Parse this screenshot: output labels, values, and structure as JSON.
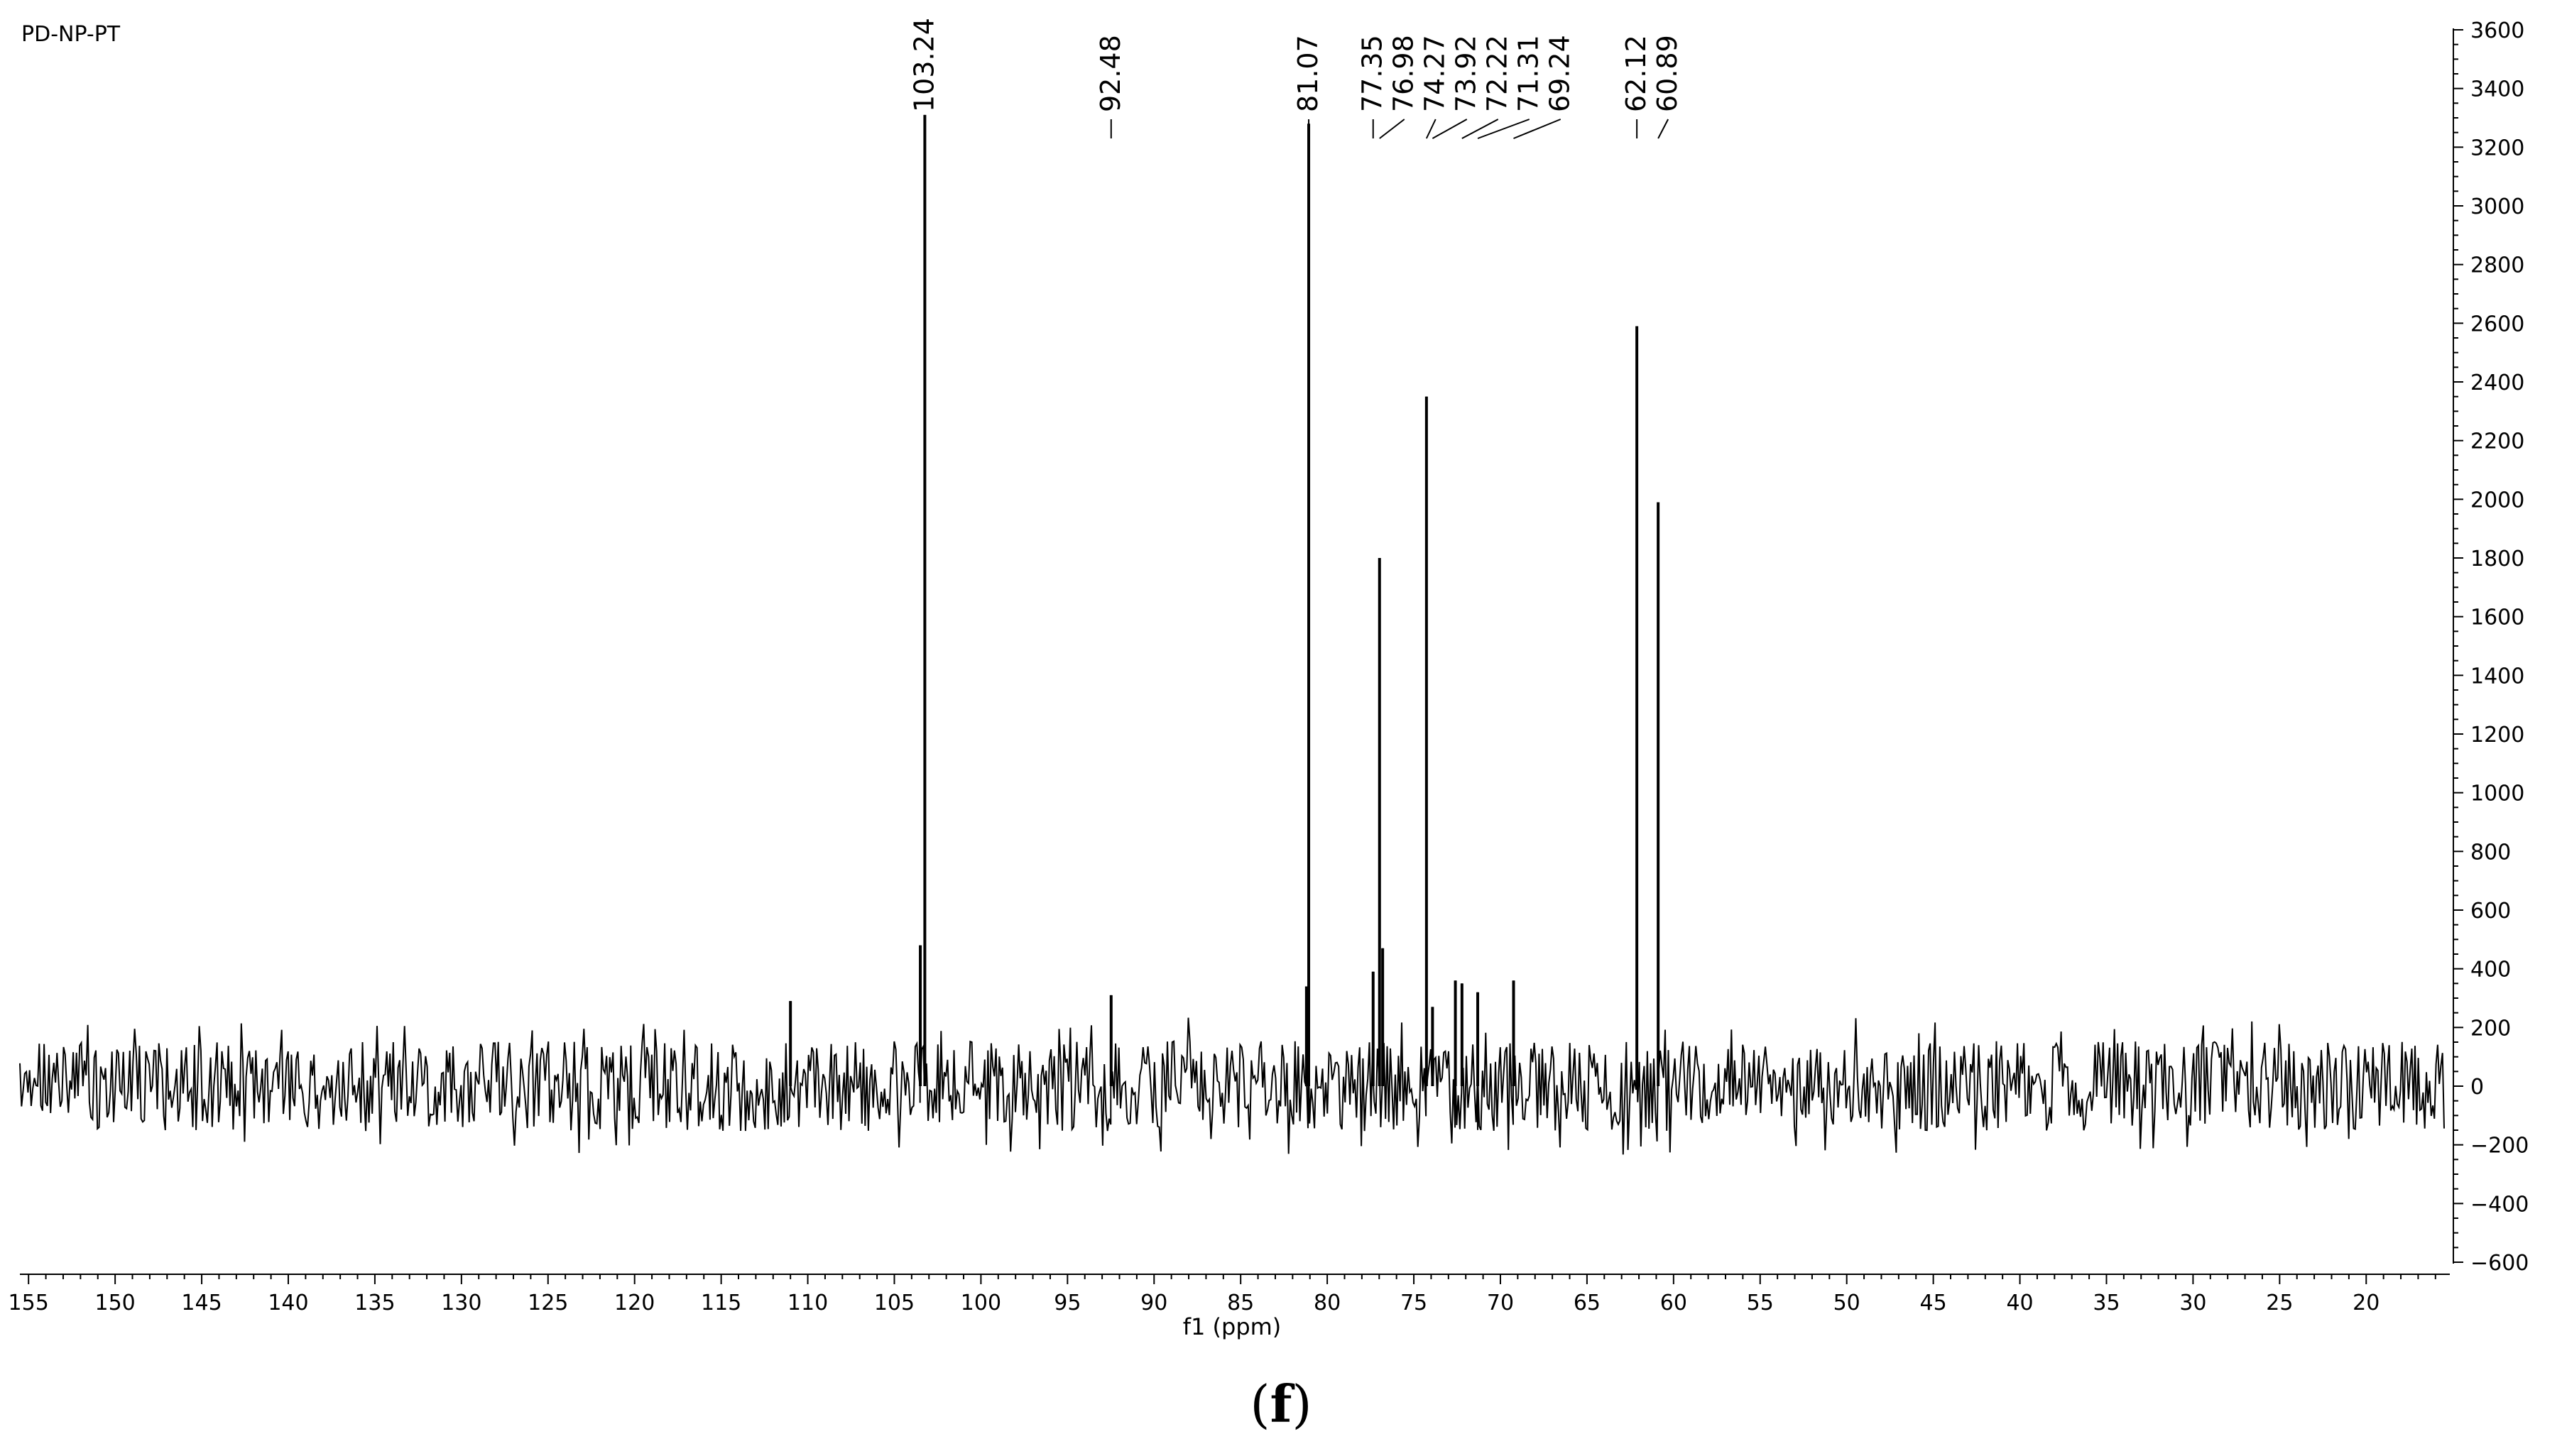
{
  "chart_data": {
    "type": "line",
    "sample_label": "PD-NP-PT",
    "xlabel": "f1 (ppm)",
    "x_axis_reversed": true,
    "xlim": [
      155.5,
      15.5
    ],
    "ylim": [
      -600,
      3600
    ],
    "x_ticks": [
      155,
      150,
      145,
      140,
      135,
      130,
      125,
      120,
      115,
      110,
      105,
      100,
      95,
      90,
      85,
      80,
      75,
      70,
      65,
      60,
      55,
      50,
      45,
      40,
      35,
      30,
      25,
      20
    ],
    "y_ticks": [
      3600,
      3400,
      3200,
      3000,
      2800,
      2600,
      2400,
      2200,
      2000,
      1800,
      1600,
      1400,
      1200,
      1000,
      800,
      600,
      400,
      200,
      0,
      -200,
      -400,
      -600
    ],
    "y_axis_side": "right",
    "grid": false,
    "noise_band": [
      -180,
      180
    ],
    "series": [
      {
        "peaks": [
          {
            "x": 103.24,
            "y": 3310
          },
          {
            "x": 103.5,
            "y": 480
          },
          {
            "x": 92.48,
            "y": 310
          },
          {
            "x": 111.0,
            "y": 290
          },
          {
            "x": 81.07,
            "y": 3280
          },
          {
            "x": 81.2,
            "y": 340
          },
          {
            "x": 77.35,
            "y": 390
          },
          {
            "x": 76.98,
            "y": 1800
          },
          {
            "x": 76.8,
            "y": 470
          },
          {
            "x": 74.27,
            "y": 2350
          },
          {
            "x": 73.92,
            "y": 270
          },
          {
            "x": 72.6,
            "y": 360
          },
          {
            "x": 72.22,
            "y": 350
          },
          {
            "x": 71.31,
            "y": 320
          },
          {
            "x": 69.24,
            "y": 360
          },
          {
            "x": 62.12,
            "y": 2590
          },
          {
            "x": 60.89,
            "y": 1990
          }
        ]
      }
    ],
    "peak_labels": [
      {
        "text": "103.24",
        "x": 103.24
      },
      {
        "text": "92.48",
        "x": 92.48
      },
      {
        "text": "81.07",
        "x": 81.07
      },
      {
        "text": "77.35",
        "x": 77.35
      },
      {
        "text": "76.98",
        "x": 76.98
      },
      {
        "text": "74.27",
        "x": 74.27
      },
      {
        "text": "73.92",
        "x": 73.92
      },
      {
        "text": "72.22",
        "x": 72.22
      },
      {
        "text": "71.31",
        "x": 71.31
      },
      {
        "text": "69.24",
        "x": 69.24
      },
      {
        "text": "62.12",
        "x": 62.12
      },
      {
        "text": "60.89",
        "x": 60.89
      }
    ]
  },
  "panel_label": "f"
}
